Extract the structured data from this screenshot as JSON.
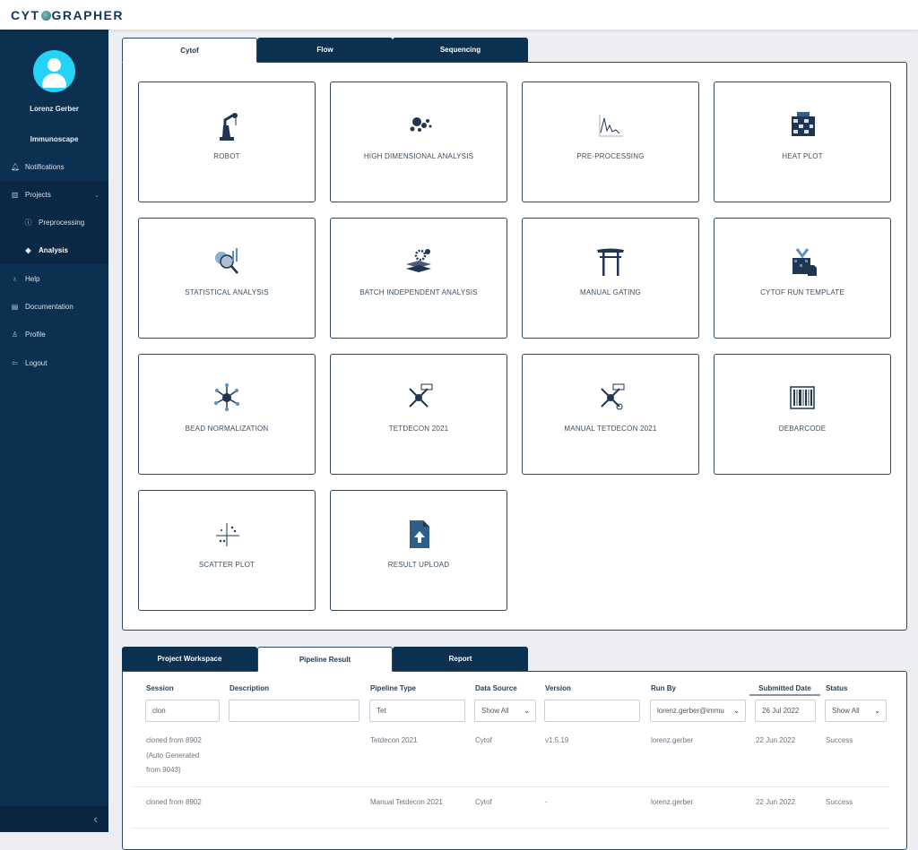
{
  "app": {
    "logo": "CYTOGRAPHER",
    "logo_pre": "CYT",
    "logo_post": "GRAPHER"
  },
  "sidebar": {
    "user_name": "Lorenz Gerber",
    "org": "Immunoscape",
    "items": [
      {
        "label": "Notifications",
        "icon": "bell-icon"
      },
      {
        "label": "Projects",
        "icon": "bar-chart-icon"
      },
      {
        "label": "Preprocessing",
        "icon": "info-circle-icon"
      },
      {
        "label": "Analysis",
        "icon": "layers-icon"
      },
      {
        "label": "Help",
        "icon": "lightbulb-icon"
      },
      {
        "label": "Documentation",
        "icon": "book-icon"
      },
      {
        "label": "Profile",
        "icon": "user-icon"
      },
      {
        "label": "Logout",
        "icon": "logout-icon"
      }
    ],
    "collapse": "‹"
  },
  "top_tabs": [
    "Cytof",
    "Flow",
    "Sequencing"
  ],
  "tiles": [
    "ROBOT",
    "HIGH DIMENSIONAL ANALYSIS",
    "PRE-PROCESSING",
    "HEAT PLOT",
    "STATISTICAL ANALYSIS",
    "BATCH INDEPENDENT ANALYSIS",
    "MANUAL GATING",
    "CYTOF RUN TEMPLATE",
    "BEAD NORMALIZATION",
    "TETDECON 2021",
    "MANUAL TETDECON 2021",
    "DEBARCODE",
    "SCATTER PLOT",
    "RESULT UPLOAD"
  ],
  "bottom_tabs": [
    "Project Workspace",
    "Pipeline Result",
    "Report"
  ],
  "table": {
    "headers": [
      "Session",
      "Description",
      "Pipeline Type",
      "Data Source",
      "Version",
      "Run By",
      "Submitted Date",
      "Status"
    ],
    "filters": [
      "clon",
      "",
      "Tet",
      "Show All",
      "",
      "lorenz.gerber@immu",
      "26 Jul 2022",
      "Show All"
    ],
    "rows": [
      [
        "cloned from 8902 (Auto Generated from 9043)",
        "",
        "Tetdecon 2021",
        "Cytof",
        "v1.5.19",
        "lorenz.gerber",
        "22 Jun 2022",
        "Success"
      ],
      [
        "cloned from 8902",
        "",
        "Manual Tetdecon 2021",
        "Cytof",
        "-",
        "lorenz.gerber",
        "22 Jun 2022",
        "Success"
      ]
    ],
    "row0_session_lines": [
      "cloned from 8902",
      "(Auto Generated",
      "from 9043)"
    ]
  },
  "colors": {
    "sidebar": "#0c3050",
    "accent": "#24d3f5",
    "tab": "#0c3050"
  }
}
